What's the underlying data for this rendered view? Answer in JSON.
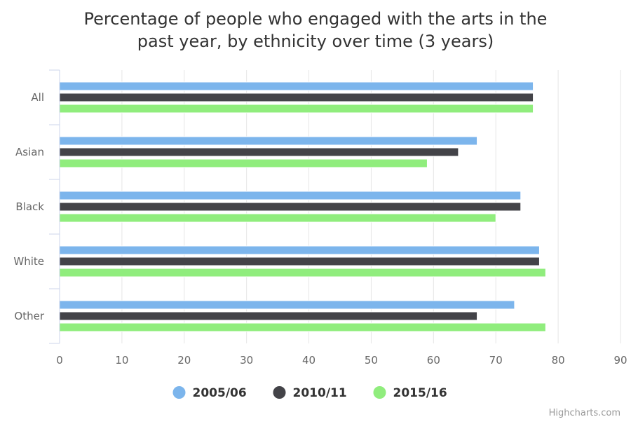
{
  "chart_data": {
    "type": "bar",
    "orientation": "horizontal",
    "title_lines": [
      "Percentage of people who engaged with the arts in the",
      "past year, by ethnicity over time (3 years)"
    ],
    "categories": [
      "All",
      "Asian",
      "Black",
      "White",
      "Other"
    ],
    "series": [
      {
        "name": "2005/06",
        "color": "#7cb5ec",
        "values": [
          76,
          67,
          74,
          77,
          73
        ]
      },
      {
        "name": "2010/11",
        "color": "#434348",
        "values": [
          76,
          64,
          74,
          77,
          67
        ]
      },
      {
        "name": "2015/16",
        "color": "#90ed7d",
        "values": [
          76,
          59,
          70,
          78,
          78
        ]
      }
    ],
    "xlim": [
      0,
      90
    ],
    "ticks": [
      0,
      10,
      20,
      30,
      40,
      50,
      60,
      70,
      80,
      90
    ],
    "grid": true,
    "legend_position": "bottom-center"
  },
  "credit": "Highcharts.com"
}
